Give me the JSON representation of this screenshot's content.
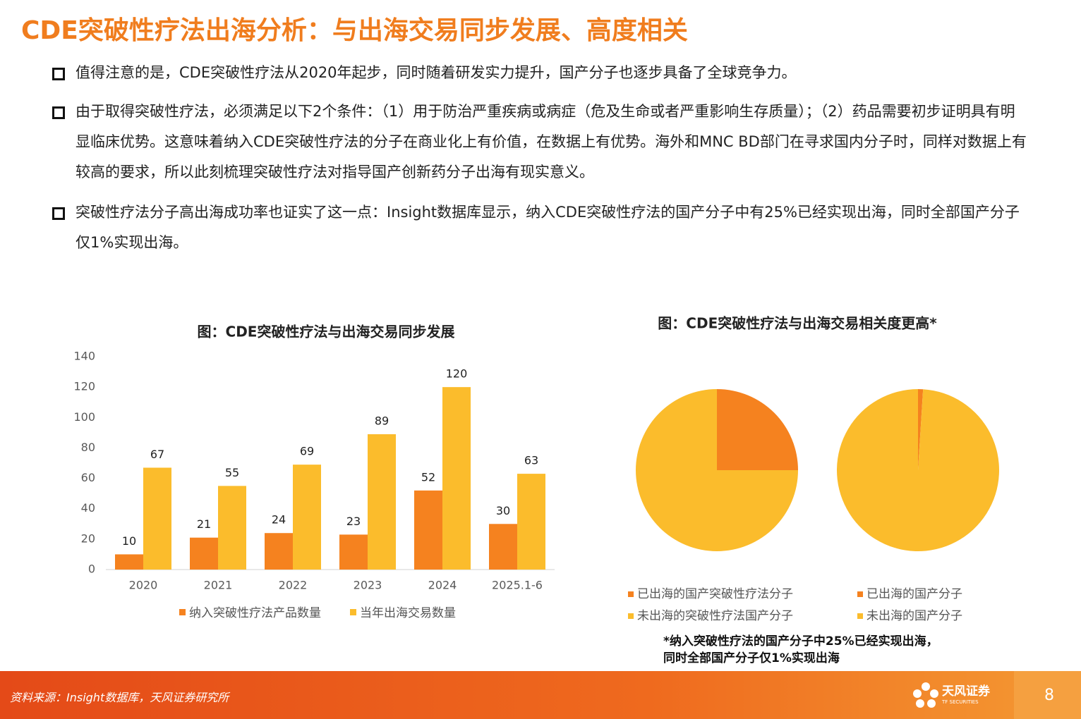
{
  "header": {
    "title": "CDE突破性疗法出海分析：与出海交易同步发展、高度相关"
  },
  "bullets": [
    "值得注意的是，CDE突破性疗法从2020年起步，同时随着研发实力提升，国产分子也逐步具备了全球竞争力。",
    "由于取得突破性疗法，必须满足以下2个条件：（1）用于防治严重疾病或病症（危及生命或者严重影响生存质量）；（2）药品需要初步证明具有明显临床优势。这意味着纳入CDE突破性疗法的分子在商业化上有价值，在数据上有优势。海外和MNC BD部门在寻求国内分子时，同样对数据上有较高的要求，所以此刻梳理突破性疗法对指导国产创新药分子出海有现实意义。",
    "突破性疗法分子高出海成功率也证实了这一点：Insight数据库显示，纳入CDE突破性疗法的国产分子中有25%已经实现出海，同时全部国产分子仅1%实现出海。"
  ],
  "chart_data": [
    {
      "type": "bar",
      "title": "图：CDE突破性疗法与出海交易同步发展",
      "categories": [
        "2020",
        "2021",
        "2022",
        "2023",
        "2024",
        "2025.1-6"
      ],
      "series": [
        {
          "name": "纳入突破性疗法产品数量",
          "color": "#f5821f",
          "values": [
            10,
            21,
            24,
            23,
            52,
            30
          ]
        },
        {
          "name": "当年出海交易数量",
          "color": "#fbbc2c",
          "values": [
            67,
            55,
            69,
            89,
            120,
            63
          ]
        }
      ],
      "ylim": [
        0,
        140
      ],
      "yticks": [
        0,
        20,
        40,
        60,
        80,
        100,
        120,
        140
      ],
      "grid": false,
      "legend": "bottom"
    },
    {
      "type": "pie",
      "title": "图：CDE突破性疗法与出海交易相关度更高*",
      "categories": [
        "已出海的国产突破性疗法分子",
        "未出海的突破性疗法国产分子"
      ],
      "values": [
        25,
        75
      ],
      "colors": [
        "#f5821f",
        "#fbbc2c"
      ]
    },
    {
      "type": "pie",
      "categories": [
        "已出海的国产分子",
        "未出海的国产分子"
      ],
      "values": [
        1,
        99
      ],
      "colors": [
        "#f5821f",
        "#fbbc2c"
      ]
    }
  ],
  "notes": [
    "*纳入突破性疗法的国产分子中25%已经实现出海，",
    "同时全部国产分子仅1%实现出海"
  ],
  "footer": {
    "source": "资料来源：Insight数据库，天风证券研究所",
    "logo": "天风证券",
    "logo_en": "TF SECURITIES",
    "page": "8"
  }
}
